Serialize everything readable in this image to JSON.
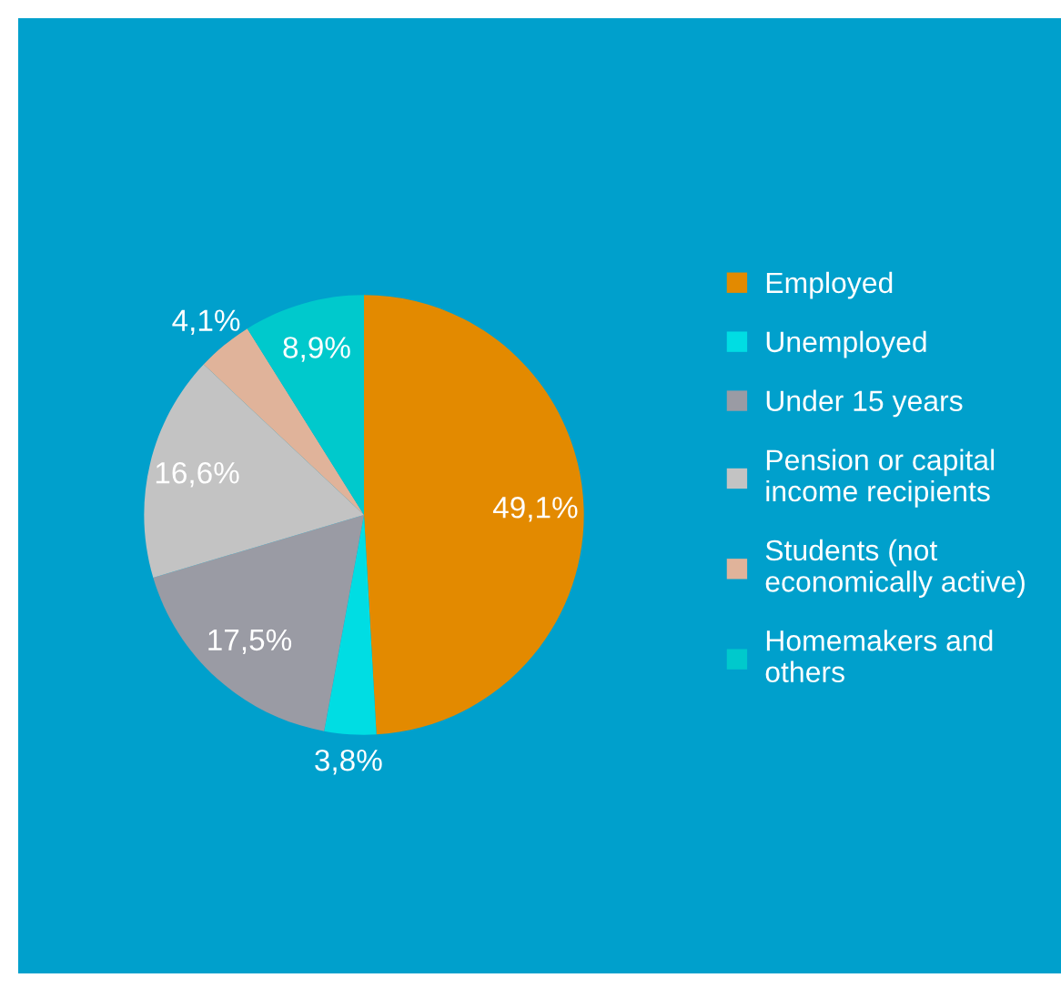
{
  "chart_data": {
    "type": "pie",
    "categories": [
      "Employed",
      "Unemployed",
      "Under 15 years",
      "Pension or capital\nincome recipients",
      "Students (not\neconomically active)",
      "Homemakers and\nothers"
    ],
    "values": [
      49.1,
      3.8,
      17.5,
      16.6,
      4.1,
      8.9
    ],
    "value_labels": [
      "49,1%",
      "3,8%",
      "17,5%",
      "16,6%",
      "4,1%",
      "8,9%"
    ],
    "colors": [
      "#e38a00",
      "#00dde3",
      "#9a9ba4",
      "#c3c3c3",
      "#e0b39a",
      "#00c9cc"
    ],
    "legend": "right"
  }
}
